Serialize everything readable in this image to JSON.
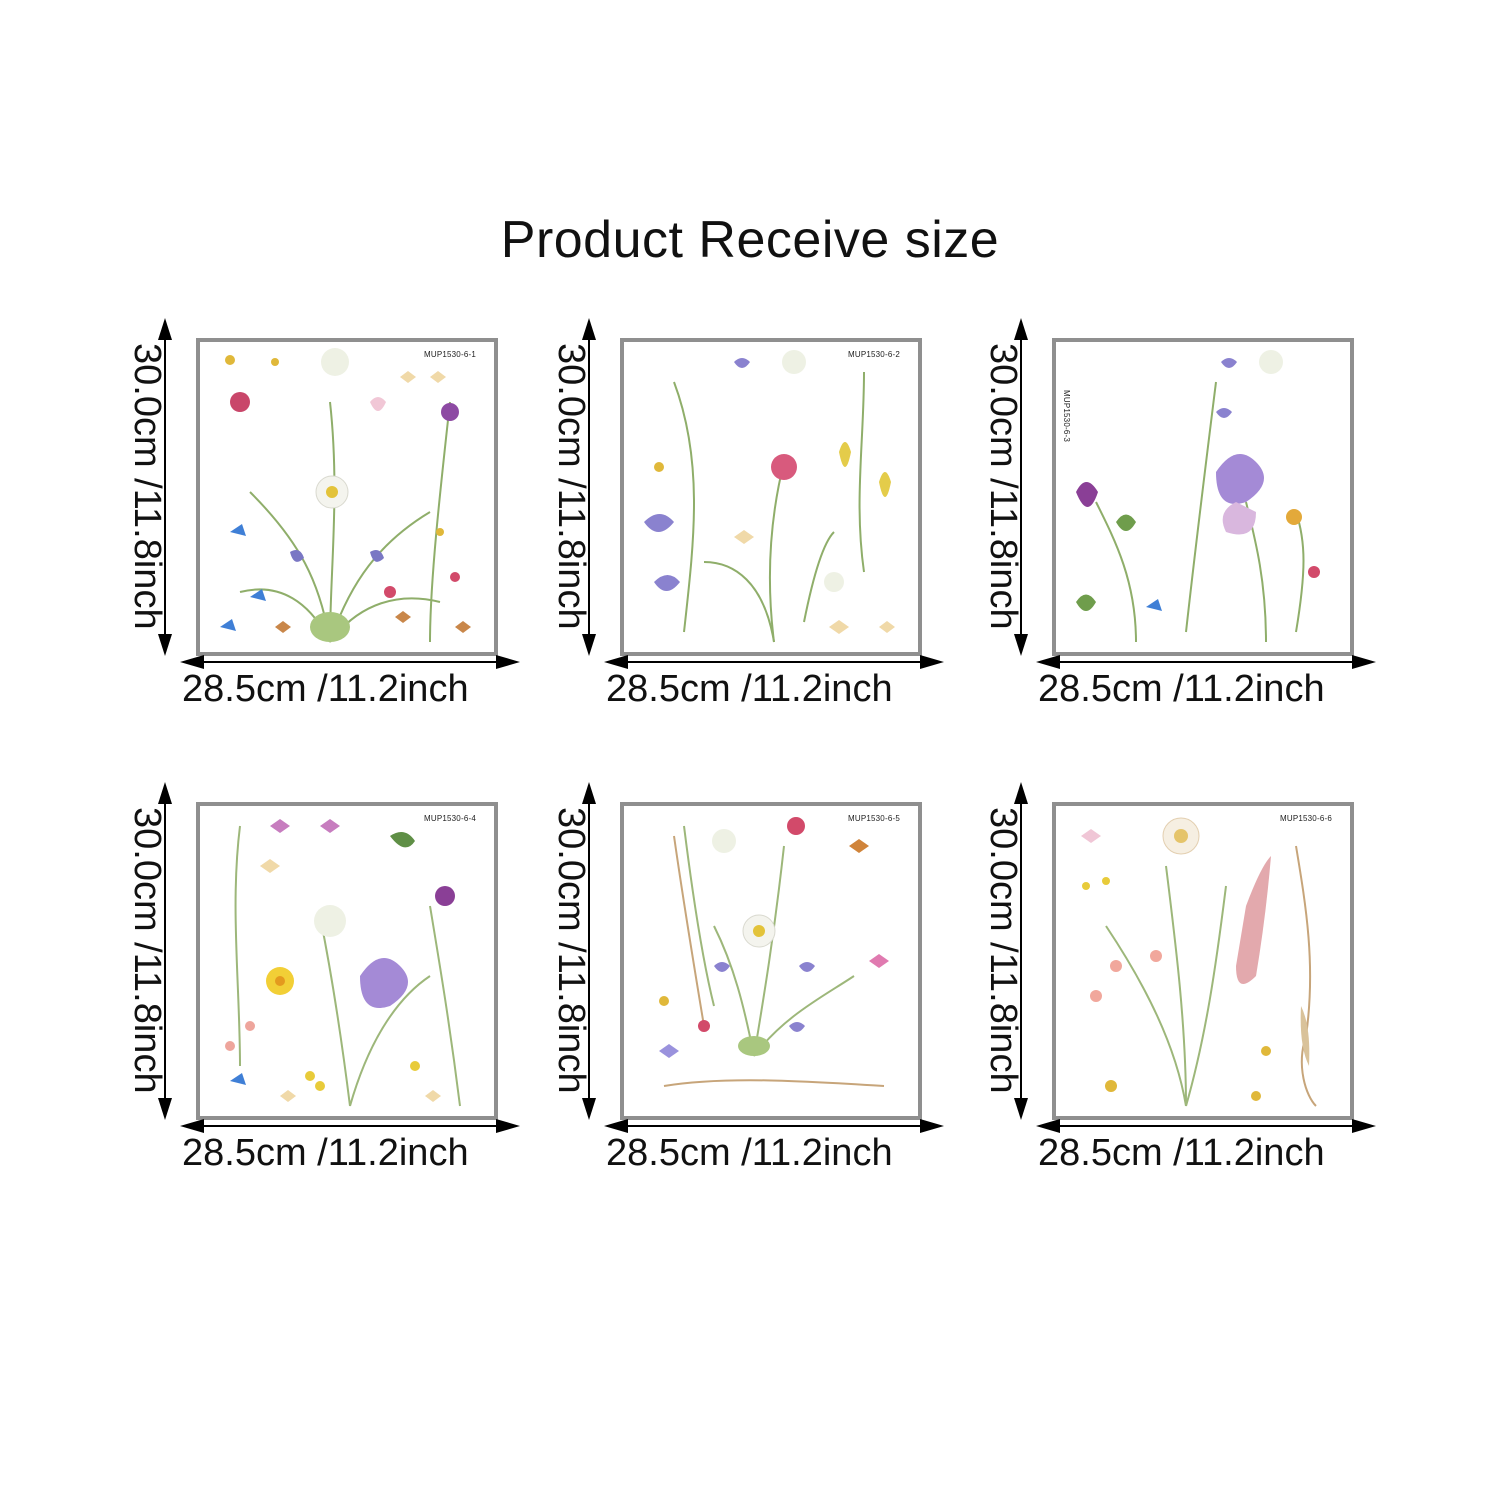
{
  "title": "Product Receive size",
  "colors": {
    "frame_border": "#8f8f8f",
    "arrow": "#000000",
    "text": "#111111"
  },
  "panels": [
    {
      "code": "MUP1530-6-1",
      "height_label": "30.0cm /11.8inch",
      "width_label": "28.5cm /11.2inch"
    },
    {
      "code": "MUP1530-6-2",
      "height_label": "30.0cm /11.8inch",
      "width_label": "28.5cm /11.2inch"
    },
    {
      "code": "MUP1530-6-3",
      "height_label": "30.0cm /11.8inch",
      "width_label": "28.5cm /11.2inch"
    },
    {
      "code": "MUP1530-6-4",
      "height_label": "30.0cm /11.8inch",
      "width_label": "28.5cm /11.2inch"
    },
    {
      "code": "MUP1530-6-5",
      "height_label": "30.0cm /11.8inch",
      "width_label": "28.5cm /11.2inch"
    },
    {
      "code": "MUP1530-6-6",
      "height_label": "30.0cm /11.8inch",
      "width_label": "28.5cm /11.2inch"
    }
  ]
}
